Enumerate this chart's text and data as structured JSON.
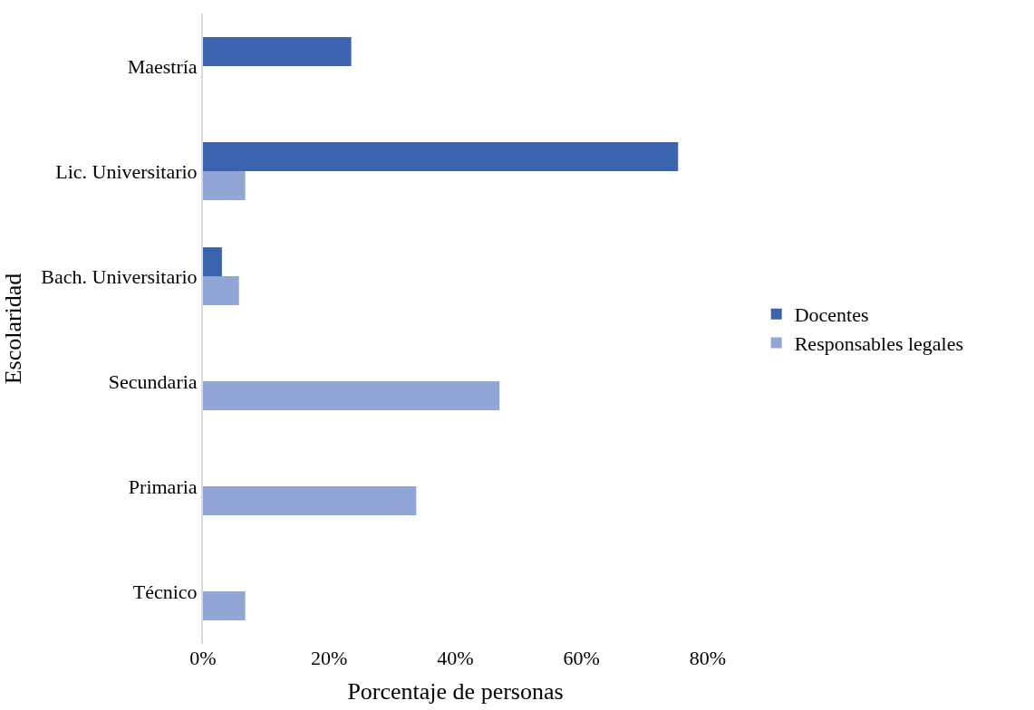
{
  "chart_data": {
    "type": "bar",
    "orientation": "horizontal",
    "xlabel": "Porcentaje de personas",
    "ylabel": "Escolaridad",
    "categories": [
      "Maestría",
      "Lic. Universitario",
      "Bach. Universitario",
      "Secundaria",
      "Primaria",
      "Técnico"
    ],
    "series": [
      {
        "name": "Docentes",
        "color": "#3c64ae",
        "values": [
          23.5,
          75.3,
          3,
          null,
          null,
          null
        ]
      },
      {
        "name": "Responsables legales",
        "color": "#91a6d6",
        "values": [
          null,
          6.7,
          5.7,
          47,
          33.8,
          6.7
        ]
      }
    ],
    "xlim": [
      0,
      80
    ],
    "xticks": [
      {
        "value": 0,
        "label": "0%"
      },
      {
        "value": 20,
        "label": "20%"
      },
      {
        "value": 40,
        "label": "40%"
      },
      {
        "value": 60,
        "label": "60%"
      },
      {
        "value": 80,
        "label": "80%"
      }
    ],
    "legend": "right"
  }
}
